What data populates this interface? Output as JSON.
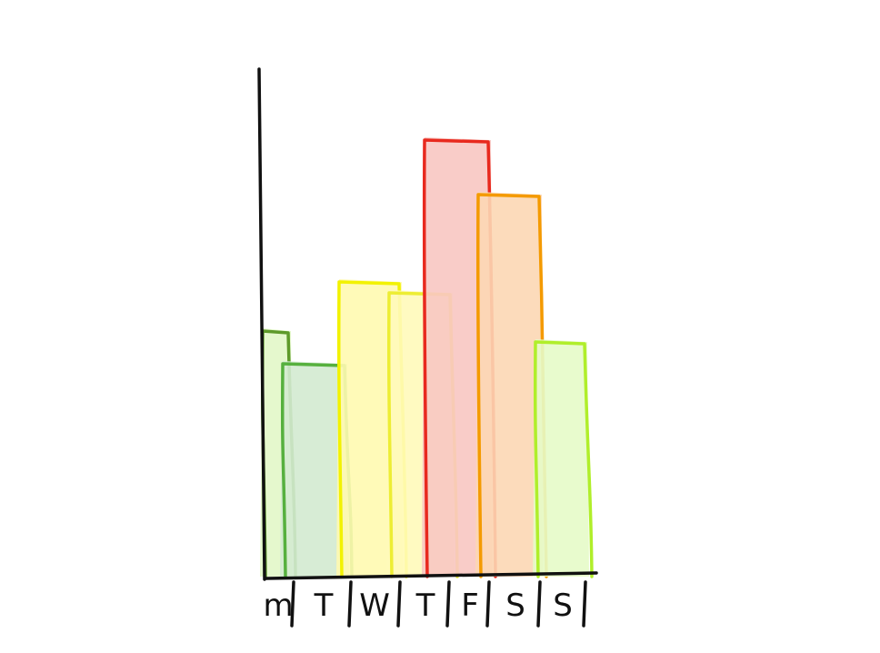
{
  "chart_data": {
    "type": "bar",
    "categories": [
      "m",
      "T",
      "W",
      "T",
      "F",
      "S",
      "S"
    ],
    "values": [
      4.5,
      3.9,
      5.4,
      5.2,
      8.0,
      7.0,
      4.3
    ],
    "title": "",
    "xlabel": "",
    "ylabel": "",
    "ylim": [
      0,
      10
    ],
    "grid": false,
    "legend": "none",
    "bar_fill_colors": [
      "#e2f7c8",
      "#d3ead0",
      "#fffab0",
      "#fffaba",
      "#f8c6c2",
      "#fcd7b4",
      "#e6fbc8"
    ],
    "bar_stroke_colors": [
      "#5e9a2a",
      "#56b03e",
      "#f2f200",
      "#eded33",
      "#e8291e",
      "#f49a00",
      "#b0ee2a"
    ],
    "axis_color": "#111111"
  }
}
